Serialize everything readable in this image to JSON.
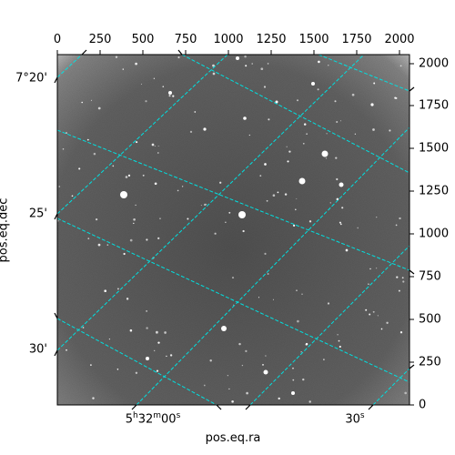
{
  "figure": {
    "xlabel": "pos.eq.ra",
    "ylabel": "pos.eq.dec",
    "top_ticks": [
      "0",
      "250",
      "500",
      "750",
      "1000",
      "1250",
      "1500",
      "1750",
      "2000"
    ],
    "right_ticks": [
      "0",
      "250",
      "500",
      "750",
      "1000",
      "1250",
      "1500",
      "1750",
      "2000"
    ],
    "dec_ticks": [
      "7°20'",
      "25'",
      "30'"
    ],
    "ra_tick_1": {
      "h": "5",
      "h_unit": "h",
      "m": "32",
      "m_unit": "m",
      "s": "00",
      "s_unit": "s"
    },
    "ra_tick_2": {
      "s": "30",
      "s_unit": "s"
    }
  },
  "colors": {
    "grid": "#00e0e0",
    "background_mid": "#5c5c5c",
    "background_edge": "#c8c8c8",
    "stars": "#ffffff"
  }
}
